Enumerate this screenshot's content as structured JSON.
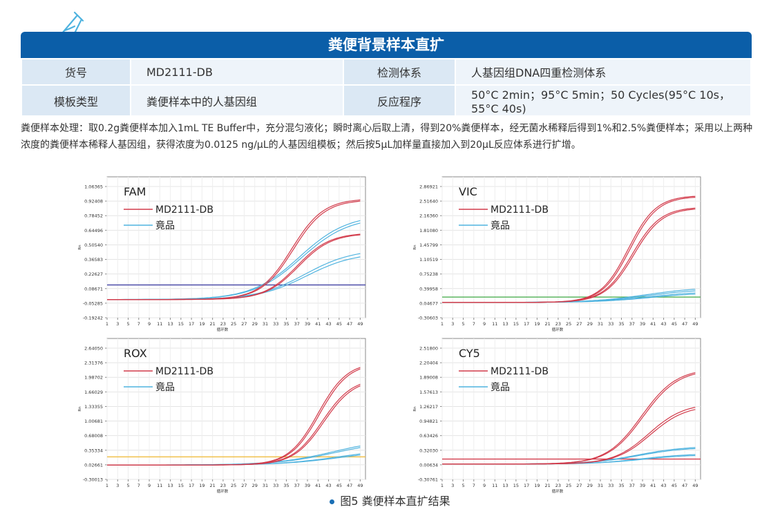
{
  "banner": {
    "title": "粪便背景样本直扩"
  },
  "info_table": {
    "row1": {
      "label1": "货号",
      "value1": "MD2111-DB",
      "label2": "检测体系",
      "value2": "人基因组DNA四重检测体系"
    },
    "row2": {
      "label1": "模板类型",
      "value1": "粪便样本中的人基因组",
      "label2": "反应程序",
      "value2": "50°C 2min；95°C 5min；50 Cycles(95°C 10s，55°C 40s)"
    }
  },
  "description": "粪便样本处理：取0.2g粪便样本加入1mL TE Buffer中，充分混匀液化；瞬时离心后取上清，得到20%粪便样本，经无菌水稀释后得到1%和2.5%粪便样本；采用以上两种浓度的粪便样本稀释人基因组，获得浓度为0.0125 ng/μL的人基因组模板；然后按5μL加样量直接加入到20μL反应体系进行扩增。",
  "caption": "图5  粪便样本直扩结果",
  "colors": {
    "brand": "#0b5ea8",
    "red_series": "#d23a4a",
    "blue_series": "#4fb3df"
  },
  "chart_data": [
    {
      "type": "line",
      "title": "FAM",
      "xlabel": "循环数",
      "ylabel": "Rn",
      "x_ticks": [
        1,
        3,
        5,
        7,
        9,
        11,
        13,
        15,
        17,
        19,
        21,
        23,
        25,
        27,
        29,
        31,
        33,
        35,
        37,
        39,
        41,
        43,
        45,
        47,
        49
      ],
      "y_ticks": [
        "1.06365",
        "0.92408",
        "0.78452",
        "0.64496",
        "0.50540",
        "0.36583",
        "0.22627",
        "0.08671",
        "-0.05285",
        "-0.19242"
      ],
      "ylim": [
        -0.19242,
        1.06365
      ],
      "legend": [
        "MD2111-DB",
        "竟品"
      ],
      "threshold": 0.1,
      "threshold_color": "#4a4aa8",
      "series": [
        {
          "name": "MD2111-DB",
          "color": "#d23a4a",
          "baseline": -0.03,
          "plateau": 0.87,
          "midpoint": 36.0,
          "slope": 0.33
        },
        {
          "name": "MD2111-DB",
          "color": "#d23a4a",
          "baseline": -0.03,
          "plateau": 0.86,
          "midpoint": 36.3,
          "slope": 0.33
        },
        {
          "name": "MD2111-DB",
          "color": "#d23a4a",
          "baseline": -0.03,
          "plateau": 0.565,
          "midpoint": 37.0,
          "slope": 0.32
        },
        {
          "name": "MD2111-DB",
          "color": "#d23a4a",
          "baseline": -0.03,
          "plateau": 0.56,
          "midpoint": 37.3,
          "slope": 0.32
        },
        {
          "name": "竟品",
          "color": "#4fb3df",
          "baseline": -0.03,
          "plateau": 0.73,
          "midpoint": 37.5,
          "slope": 0.22
        },
        {
          "name": "竟品",
          "color": "#4fb3df",
          "baseline": -0.03,
          "plateau": 0.71,
          "midpoint": 37.8,
          "slope": 0.22
        },
        {
          "name": "竟品",
          "color": "#4fb3df",
          "baseline": -0.03,
          "plateau": 0.42,
          "midpoint": 38.5,
          "slope": 0.22
        },
        {
          "name": "竟品",
          "color": "#4fb3df",
          "baseline": -0.03,
          "plateau": 0.39,
          "midpoint": 38.8,
          "slope": 0.22
        }
      ]
    },
    {
      "type": "line",
      "title": "VIC",
      "xlabel": "循环数",
      "ylabel": "Rn",
      "x_ticks": [
        1,
        3,
        5,
        7,
        9,
        11,
        13,
        15,
        17,
        19,
        21,
        23,
        25,
        27,
        29,
        31,
        33,
        35,
        37,
        39,
        41,
        43,
        45,
        47,
        49
      ],
      "y_ticks": [
        "2.86921",
        "2.51640",
        "2.16360",
        "1.81080",
        "1.45799",
        "1.10519",
        "0.75238",
        "0.39958",
        "0.04677",
        "-0.30603"
      ],
      "ylim": [
        -0.30603,
        2.86921
      ],
      "legend": [
        "MD2111-DB",
        "竟品"
      ],
      "threshold": 0.16,
      "threshold_color": "#4caf50",
      "series": [
        {
          "name": "MD2111-DB",
          "color": "#d23a4a",
          "baseline": 0.04,
          "plateau": 2.45,
          "midpoint": 36.3,
          "slope": 0.38
        },
        {
          "name": "MD2111-DB",
          "color": "#d23a4a",
          "baseline": 0.04,
          "plateau": 2.43,
          "midpoint": 36.6,
          "slope": 0.38
        },
        {
          "name": "MD2111-DB",
          "color": "#d23a4a",
          "baseline": 0.04,
          "plateau": 2.19,
          "midpoint": 37.0,
          "slope": 0.37
        },
        {
          "name": "MD2111-DB",
          "color": "#d23a4a",
          "baseline": 0.04,
          "plateau": 2.17,
          "midpoint": 37.3,
          "slope": 0.37
        },
        {
          "name": "竟品",
          "color": "#4fb3df",
          "baseline": 0.04,
          "plateau": 0.38,
          "midpoint": 39.5,
          "slope": 0.2
        },
        {
          "name": "竟品",
          "color": "#4fb3df",
          "baseline": 0.04,
          "plateau": 0.34,
          "midpoint": 39.8,
          "slope": 0.2
        },
        {
          "name": "竟品",
          "color": "#4fb3df",
          "baseline": 0.04,
          "plateau": 0.29,
          "midpoint": 40.2,
          "slope": 0.2
        },
        {
          "name": "竟品",
          "color": "#4fb3df",
          "baseline": 0.04,
          "plateau": 0.26,
          "midpoint": 40.5,
          "slope": 0.2
        }
      ]
    },
    {
      "type": "line",
      "title": "ROX",
      "xlabel": "循环数",
      "ylabel": "Rn",
      "x_ticks": [
        1,
        3,
        5,
        7,
        9,
        11,
        13,
        15,
        17,
        19,
        21,
        23,
        25,
        27,
        29,
        31,
        33,
        35,
        37,
        39,
        41,
        43,
        45,
        47,
        49
      ],
      "y_ticks": [
        "2.64050",
        "2.31376",
        "1.98702",
        "1.66029",
        "1.33355",
        "1.00681",
        "0.68008",
        "0.35334",
        "0.02661",
        "-0.30013"
      ],
      "ylim": [
        -0.30013,
        2.6405
      ],
      "legend": [
        "MD2111-DB",
        "竟品"
      ],
      "threshold": 0.17,
      "threshold_color": "#f0c04a",
      "series": [
        {
          "name": "MD2111-DB",
          "color": "#d23a4a",
          "baseline": 0.0,
          "plateau": 2.15,
          "midpoint": 41.0,
          "slope": 0.36
        },
        {
          "name": "MD2111-DB",
          "color": "#d23a4a",
          "baseline": 0.0,
          "plateau": 2.13,
          "midpoint": 41.3,
          "slope": 0.36
        },
        {
          "name": "MD2111-DB",
          "color": "#d23a4a",
          "baseline": 0.0,
          "plateau": 1.82,
          "midpoint": 41.8,
          "slope": 0.35
        },
        {
          "name": "MD2111-DB",
          "color": "#d23a4a",
          "baseline": 0.0,
          "plateau": 1.8,
          "midpoint": 42.1,
          "slope": 0.35
        },
        {
          "name": "竟品",
          "color": "#4fb3df",
          "baseline": 0.0,
          "plateau": 0.56,
          "midpoint": 44.0,
          "slope": 0.18
        },
        {
          "name": "竟品",
          "color": "#4fb3df",
          "baseline": 0.0,
          "plateau": 0.52,
          "midpoint": 44.3,
          "slope": 0.18
        },
        {
          "name": "竟品",
          "color": "#4fb3df",
          "baseline": 0.0,
          "plateau": 0.34,
          "midpoint": 44.8,
          "slope": 0.18
        },
        {
          "name": "竟品",
          "color": "#4fb3df",
          "baseline": 0.0,
          "plateau": 0.31,
          "midpoint": 45.1,
          "slope": 0.18
        }
      ]
    },
    {
      "type": "line",
      "title": "CY5",
      "xlabel": "循环数",
      "ylabel": "Rn",
      "x_ticks": [
        1,
        3,
        5,
        7,
        9,
        11,
        13,
        15,
        17,
        19,
        21,
        23,
        25,
        27,
        29,
        31,
        33,
        35,
        37,
        39,
        41,
        43,
        45,
        47,
        49
      ],
      "y_ticks": [
        "2.51800",
        "2.20404",
        "1.89008",
        "1.57613",
        "1.26217",
        "0.94821",
        "0.63426",
        "0.32030",
        "0.00634",
        "-0.30761"
      ],
      "ylim": [
        -0.30761,
        2.518
      ],
      "legend": [
        "MD2111-DB",
        "竟品"
      ],
      "threshold": 0.1,
      "threshold_color": "#d23a4a",
      "series": [
        {
          "name": "MD2111-DB",
          "color": "#d23a4a",
          "baseline": 0.0,
          "plateau": 1.92,
          "midpoint": 38.8,
          "slope": 0.3
        },
        {
          "name": "MD2111-DB",
          "color": "#d23a4a",
          "baseline": 0.0,
          "plateau": 1.9,
          "midpoint": 39.1,
          "slope": 0.3
        },
        {
          "name": "MD2111-DB",
          "color": "#d23a4a",
          "baseline": 0.0,
          "plateau": 1.22,
          "midpoint": 40.2,
          "slope": 0.3
        },
        {
          "name": "MD2111-DB",
          "color": "#d23a4a",
          "baseline": 0.0,
          "plateau": 1.18,
          "midpoint": 40.5,
          "slope": 0.3
        },
        {
          "name": "竟品",
          "color": "#4fb3df",
          "baseline": 0.0,
          "plateau": 0.36,
          "midpoint": 38.0,
          "slope": 0.22
        },
        {
          "name": "竟品",
          "color": "#4fb3df",
          "baseline": 0.0,
          "plateau": 0.34,
          "midpoint": 38.3,
          "slope": 0.22
        },
        {
          "name": "竟品",
          "color": "#4fb3df",
          "baseline": 0.0,
          "plateau": 0.21,
          "midpoint": 38.8,
          "slope": 0.22
        },
        {
          "name": "竟品",
          "color": "#4fb3df",
          "baseline": 0.0,
          "plateau": 0.19,
          "midpoint": 39.1,
          "slope": 0.22
        }
      ]
    }
  ]
}
